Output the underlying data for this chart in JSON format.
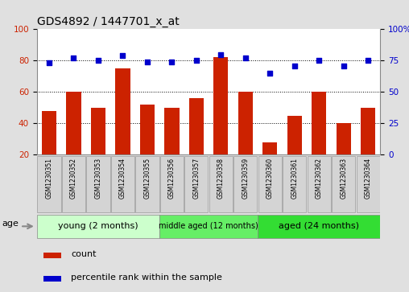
{
  "title": "GDS4892 / 1447701_x_at",
  "samples": [
    "GSM1230351",
    "GSM1230352",
    "GSM1230353",
    "GSM1230354",
    "GSM1230355",
    "GSM1230356",
    "GSM1230357",
    "GSM1230358",
    "GSM1230359",
    "GSM1230360",
    "GSM1230361",
    "GSM1230362",
    "GSM1230363",
    "GSM1230364"
  ],
  "counts": [
    48,
    60,
    50,
    75,
    52,
    50,
    56,
    82,
    60,
    28,
    45,
    60,
    40,
    50
  ],
  "percentiles": [
    73,
    77,
    75,
    79,
    74,
    74,
    75,
    80,
    77,
    65,
    71,
    75,
    71,
    75
  ],
  "ylim_left": [
    20,
    100
  ],
  "ylim_right": [
    0,
    100
  ],
  "yticks_left": [
    20,
    40,
    60,
    80,
    100
  ],
  "yticks_right": [
    0,
    25,
    50,
    75,
    100
  ],
  "ytick_labels_right": [
    "0",
    "25",
    "50",
    "75",
    "100%"
  ],
  "bar_color": "#cc2200",
  "dot_color": "#0000cc",
  "grid_color": "#000000",
  "groups": [
    {
      "label": "young (2 months)",
      "start": 0,
      "end": 5,
      "color": "#ccffcc"
    },
    {
      "label": "middle aged (12 months)",
      "start": 5,
      "end": 9,
      "color": "#66ee66"
    },
    {
      "label": "aged (24 months)",
      "start": 9,
      "end": 14,
      "color": "#33dd33"
    }
  ],
  "age_label": "age",
  "legend_count": "count",
  "legend_percentile": "percentile rank within the sample",
  "background_color": "#e0e0e0",
  "plot_bg_color": "#ffffff",
  "sample_box_color": "#d4d4d4",
  "title_fontsize": 10,
  "tick_fontsize": 7.5,
  "label_fontsize": 7
}
